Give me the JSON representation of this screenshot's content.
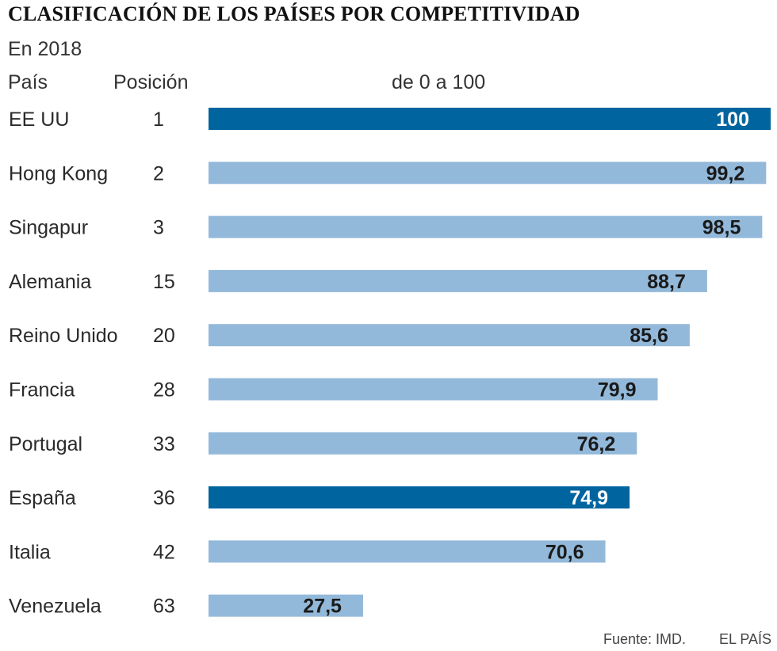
{
  "header": {
    "title": "CLASIFICACIÓN DE LOS PAÍSES POR COMPETITIVIDAD",
    "subtitle": "En 2018",
    "col_country": "País",
    "col_rank": "Posición",
    "col_scale": "de 0 a 100"
  },
  "footer": {
    "source": "Fuente: IMD.",
    "brand": "EL PAÍS"
  },
  "colors": {
    "highlight": "#00649f",
    "normal": "#93b9da",
    "text_dark": "#1a1a1a",
    "text_light": "#ffffff"
  },
  "chart_data": {
    "type": "bar",
    "orientation": "horizontal",
    "title": "CLASIFICACIÓN DE LOS PAÍSES POR COMPETITIVIDAD",
    "subtitle": "En 2018",
    "xlabel": "de 0 a 100",
    "ylabel": "País",
    "xlim": [
      0,
      100
    ],
    "categories": [
      "EE UU",
      "Hong Kong",
      "Singapur",
      "Alemania",
      "Reino Unido",
      "Francia",
      "Portugal",
      "España",
      "Italia",
      "Venezuela"
    ],
    "ranks": [
      "1",
      "2",
      "3",
      "15",
      "20",
      "28",
      "33",
      "36",
      "42",
      "63"
    ],
    "values": [
      100,
      99.2,
      98.5,
      88.7,
      85.6,
      79.9,
      76.2,
      74.9,
      70.6,
      27.5
    ],
    "labels": [
      "100",
      "99,2",
      "98,5",
      "88,7",
      "85,6",
      "79,9",
      "76,2",
      "74,9",
      "70,6",
      "27,5"
    ],
    "highlighted": [
      true,
      false,
      false,
      false,
      false,
      false,
      false,
      true,
      false,
      false
    ]
  }
}
